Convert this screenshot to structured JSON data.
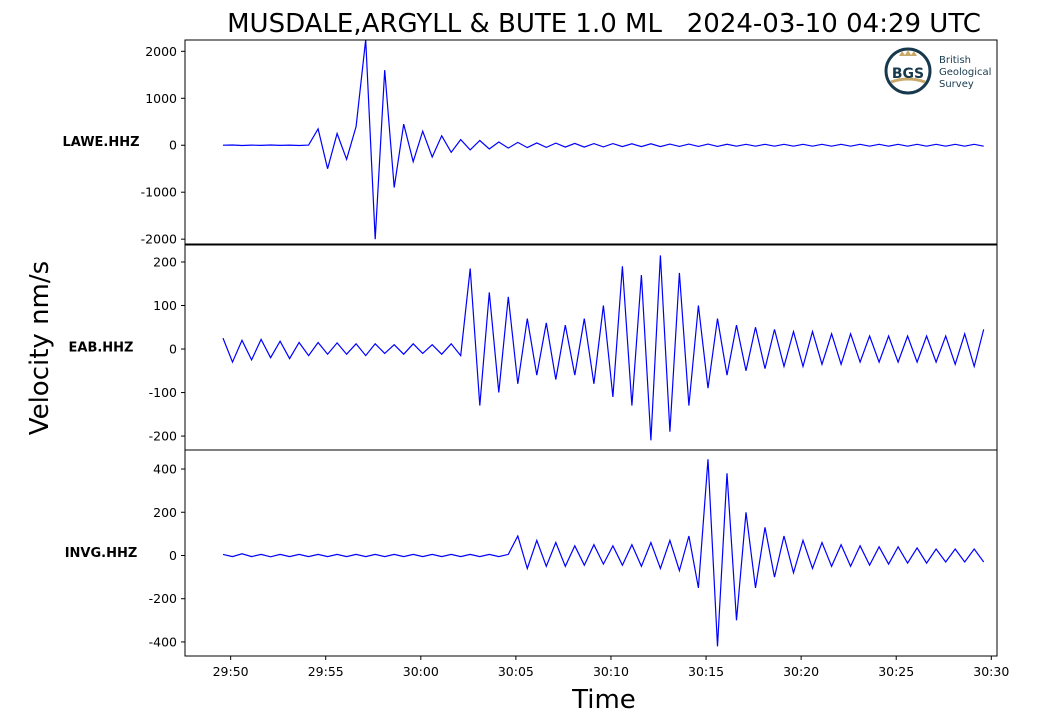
{
  "chart_data": {
    "type": "line",
    "title": "MUSDALE,ARGYLL & BUTE 1.0 ML   2024-03-10 04:29 UTC",
    "xlabel": "Time",
    "ylabel": "Velocity nm/s",
    "logo": {
      "mark": "BGS",
      "lines": [
        "British",
        "Geological",
        "Survey"
      ]
    },
    "xlim": [
      47.6,
      90.3
    ],
    "xticks": [
      {
        "value": 50,
        "label": "29:50"
      },
      {
        "value": 55,
        "label": "29:55"
      },
      {
        "value": 60,
        "label": "30:00"
      },
      {
        "value": 65,
        "label": "30:05"
      },
      {
        "value": 70,
        "label": "30:10"
      },
      {
        "value": 75,
        "label": "30:15"
      },
      {
        "value": 80,
        "label": "30:20"
      },
      {
        "value": 85,
        "label": "30:25"
      },
      {
        "value": 90,
        "label": "30:30"
      }
    ],
    "x": [
      49.6,
      50.1,
      50.6,
      51.1,
      51.6,
      52.1,
      52.6,
      53.1,
      53.6,
      54.1,
      54.6,
      55.1,
      55.6,
      56.1,
      56.6,
      57.1,
      57.6,
      58.1,
      58.6,
      59.1,
      59.6,
      60.1,
      60.6,
      61.1,
      61.6,
      62.1,
      62.6,
      63.1,
      63.6,
      64.1,
      64.6,
      65.1,
      65.6,
      66.1,
      66.6,
      67.1,
      67.6,
      68.1,
      68.6,
      69.1,
      69.6,
      70.1,
      70.6,
      71.1,
      71.6,
      72.1,
      72.6,
      73.1,
      73.6,
      74.1,
      74.6,
      75.1,
      75.6,
      76.1,
      76.6,
      77.1,
      77.6,
      78.1,
      78.6,
      79.1,
      79.6,
      80.1,
      80.6,
      81.1,
      81.6,
      82.1,
      82.6,
      83.1,
      83.6,
      84.1,
      84.6,
      85.1,
      85.6,
      86.1,
      86.6,
      87.1,
      87.6,
      88.1,
      88.6,
      89.1,
      89.6
    ],
    "panels": [
      {
        "name": "LAWE.HHZ",
        "color": "#0000ff",
        "ylim": [
          -2103,
          2241
        ],
        "yticks": [
          -2000,
          -1000,
          0,
          1000,
          2000
        ],
        "values": [
          0,
          5,
          -5,
          3,
          -4,
          5,
          -3,
          4,
          -5,
          3,
          350,
          -500,
          250,
          -300,
          400,
          2250,
          -2000,
          1600,
          -900,
          450,
          -350,
          300,
          -250,
          200,
          -150,
          120,
          -100,
          100,
          -80,
          70,
          -60,
          60,
          -50,
          50,
          -45,
          45,
          -40,
          40,
          -40,
          35,
          -35,
          35,
          -30,
          30,
          -30,
          30,
          -30,
          25,
          -25,
          25,
          -25,
          25,
          -25,
          20,
          -20,
          20,
          -20,
          20,
          -20,
          20,
          -20,
          20,
          -20,
          20,
          -20,
          20,
          -20,
          20,
          -20,
          20,
          -20,
          20,
          -20,
          20,
          -20,
          20,
          -20,
          20,
          -20,
          20,
          -20
        ]
      },
      {
        "name": "EAB.HHZ",
        "color": "#0000ff",
        "ylim": [
          -232,
          239
        ],
        "yticks": [
          -200,
          -100,
          0,
          100,
          200
        ],
        "values": [
          25,
          -30,
          20,
          -25,
          22,
          -20,
          18,
          -22,
          15,
          -15,
          15,
          -12,
          14,
          -12,
          12,
          -15,
          12,
          -10,
          10,
          -12,
          12,
          -10,
          10,
          -12,
          12,
          -15,
          185,
          -130,
          130,
          -100,
          120,
          -80,
          70,
          -60,
          60,
          -70,
          55,
          -60,
          70,
          -80,
          100,
          -110,
          190,
          -130,
          170,
          -210,
          215,
          -190,
          175,
          -130,
          100,
          -90,
          70,
          -60,
          55,
          -50,
          50,
          -45,
          45,
          -40,
          40,
          -40,
          40,
          -35,
          35,
          -35,
          35,
          -30,
          30,
          -30,
          30,
          -30,
          30,
          -30,
          30,
          -30,
          30,
          -35,
          35,
          -40,
          45
        ]
      },
      {
        "name": "INVG.HHZ",
        "color": "#0000ff",
        "ylim": [
          -465,
          488
        ],
        "yticks": [
          -400,
          -200,
          0,
          200,
          400
        ],
        "values": [
          5,
          -5,
          8,
          -5,
          5,
          -6,
          5,
          -5,
          5,
          -5,
          5,
          -5,
          5,
          -5,
          5,
          -5,
          5,
          -5,
          5,
          -5,
          5,
          -5,
          5,
          -5,
          5,
          -5,
          5,
          -5,
          5,
          -5,
          5,
          90,
          -60,
          70,
          -50,
          60,
          -50,
          45,
          -45,
          50,
          -40,
          45,
          -45,
          50,
          -50,
          60,
          -60,
          70,
          -70,
          90,
          -150,
          445,
          -420,
          380,
          -300,
          200,
          -150,
          130,
          -100,
          90,
          -80,
          70,
          -60,
          60,
          -50,
          50,
          -50,
          45,
          -45,
          40,
          -40,
          40,
          -35,
          35,
          -35,
          30,
          -30,
          30,
          -30,
          30,
          -30
        ]
      }
    ]
  }
}
